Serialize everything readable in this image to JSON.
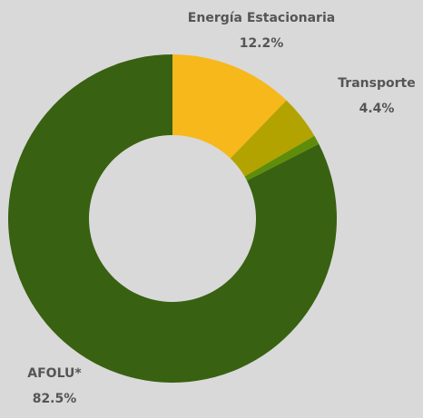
{
  "chart_data": {
    "type": "donut",
    "categories": [
      "Energía Estacionaria",
      "Transporte",
      null,
      "AFOLU*"
    ],
    "values": [
      12.2,
      4.4,
      0.9,
      82.5
    ],
    "value_labels": [
      "12.2%",
      "4.4%",
      null,
      "82.5%"
    ],
    "colors": [
      "#f7b81c",
      "#b3a300",
      "#5f8d0a",
      "#386111"
    ]
  }
}
